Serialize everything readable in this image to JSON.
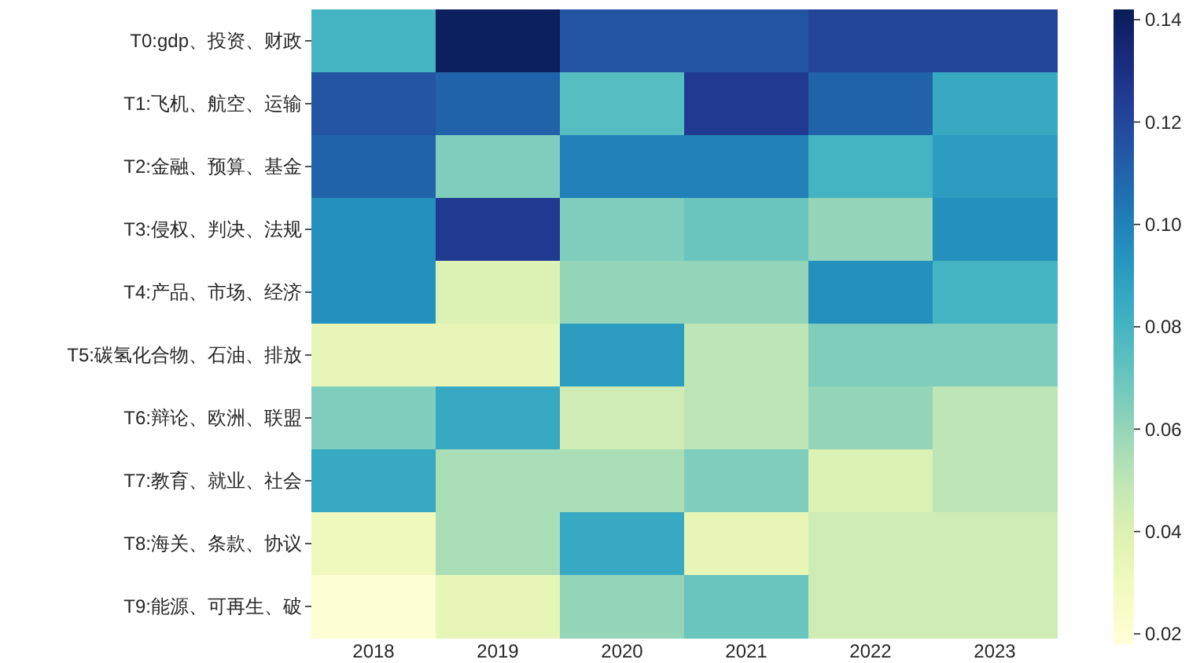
{
  "chart_data": {
    "type": "heatmap",
    "categories": [
      "2018",
      "2019",
      "2020",
      "2021",
      "2022",
      "2023"
    ],
    "y_categories": [
      "T0:gdp、投资、财政",
      "T1:飞机、航空、运输",
      "T2:金融、预算、基金",
      "T3:侵权、判决、法规",
      "T4:产品、市场、经济",
      "T5:碳氢化合物、石油、排放",
      "T6:辩论、欧洲、联盟",
      "T7:教育、就业、社会",
      "T8:海关、条款、协议",
      "T9:能源、可再生、破"
    ],
    "cells": [
      [
        0.08,
        0.14,
        0.115,
        0.115,
        0.12,
        0.12
      ],
      [
        0.115,
        0.11,
        0.075,
        0.125,
        0.11,
        0.085
      ],
      [
        0.11,
        0.065,
        0.1,
        0.1,
        0.08,
        0.09
      ],
      [
        0.095,
        0.125,
        0.065,
        0.07,
        0.06,
        0.095
      ],
      [
        0.095,
        0.04,
        0.06,
        0.06,
        0.095,
        0.08
      ],
      [
        0.035,
        0.035,
        0.09,
        0.05,
        0.065,
        0.065
      ],
      [
        0.065,
        0.085,
        0.045,
        0.05,
        0.06,
        0.05
      ],
      [
        0.085,
        0.055,
        0.055,
        0.065,
        0.04,
        0.05
      ],
      [
        0.03,
        0.055,
        0.085,
        0.035,
        0.045,
        0.045
      ],
      [
        0.02,
        0.035,
        0.06,
        0.07,
        0.045,
        0.045
      ]
    ],
    "clim": [
      0.018,
      0.142
    ],
    "cticks": [
      {
        "value": 0.02,
        "label": "0.02"
      },
      {
        "value": 0.04,
        "label": "0.04"
      },
      {
        "value": 0.06,
        "label": "0.06"
      },
      {
        "value": 0.08,
        "label": "0.08"
      },
      {
        "value": 0.1,
        "label": "0.10"
      },
      {
        "value": 0.12,
        "label": "0.12"
      },
      {
        "value": 0.14,
        "label": "0.14"
      }
    ]
  }
}
